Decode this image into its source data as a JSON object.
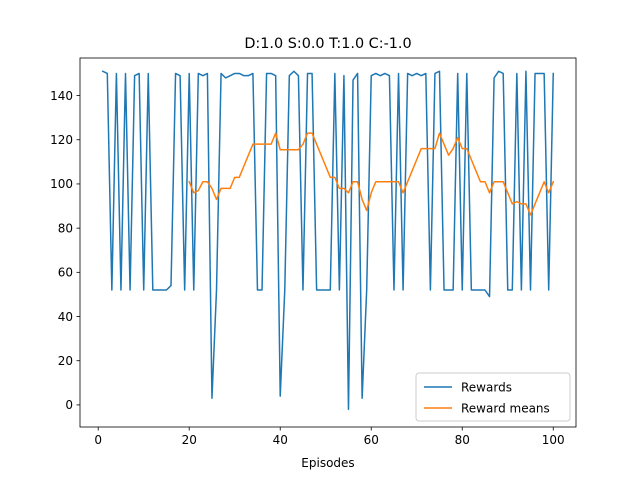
{
  "chart_data": {
    "type": "line",
    "title": "D:1.0 S:0.0 T:1.0 C:-1.0",
    "xlabel": "Episodes",
    "ylabel": "",
    "xlim": [
      -4,
      105
    ],
    "ylim": [
      -10,
      157
    ],
    "xticks": [
      0,
      20,
      40,
      60,
      80,
      100
    ],
    "yticks": [
      0,
      20,
      40,
      60,
      80,
      100,
      120,
      140
    ],
    "legend_position": "lower-right",
    "grid": false,
    "series": [
      {
        "name": "Rewards",
        "color": "#1f77b4",
        "x": [
          1,
          2,
          3,
          4,
          5,
          6,
          7,
          8,
          9,
          10,
          11,
          12,
          13,
          14,
          15,
          16,
          17,
          18,
          19,
          20,
          21,
          22,
          23,
          24,
          25,
          26,
          27,
          28,
          29,
          30,
          31,
          32,
          33,
          34,
          35,
          36,
          37,
          38,
          39,
          40,
          41,
          42,
          43,
          44,
          45,
          46,
          47,
          48,
          49,
          50,
          51,
          52,
          53,
          54,
          55,
          56,
          57,
          58,
          59,
          60,
          61,
          62,
          63,
          64,
          65,
          66,
          67,
          68,
          69,
          70,
          71,
          72,
          73,
          74,
          75,
          76,
          77,
          78,
          79,
          80,
          81,
          82,
          83,
          84,
          85,
          86,
          87,
          88,
          89,
          90,
          91,
          92,
          93,
          94,
          95,
          96,
          97,
          98,
          99,
          100
        ],
        "values": [
          151,
          150,
          52,
          150,
          52,
          150,
          52,
          149,
          150,
          52,
          150,
          52,
          52,
          52,
          52,
          54,
          150,
          149,
          52,
          150,
          52,
          150,
          149,
          150,
          3,
          52,
          150,
          148,
          149,
          150,
          150,
          149,
          149,
          150,
          52,
          52,
          150,
          150,
          149,
          4,
          52,
          149,
          151,
          149,
          52,
          150,
          150,
          52,
          52,
          52,
          52,
          150,
          52,
          149,
          -2,
          147,
          150,
          3,
          52,
          149,
          150,
          149,
          150,
          149,
          52,
          150,
          52,
          150,
          149,
          150,
          149,
          150,
          52,
          150,
          151,
          52,
          52,
          52,
          150,
          52,
          150,
          52,
          52,
          52,
          52,
          49,
          148,
          151,
          150,
          52,
          52,
          150,
          52,
          151,
          52,
          150,
          150,
          150,
          52,
          150
        ]
      },
      {
        "name": "Reward means",
        "color": "#ff7f0e",
        "x": [
          20,
          21,
          22,
          23,
          24,
          25,
          26,
          27,
          28,
          29,
          30,
          31,
          32,
          33,
          34,
          35,
          36,
          37,
          38,
          39,
          40,
          41,
          42,
          43,
          44,
          45,
          46,
          47,
          48,
          49,
          50,
          51,
          52,
          53,
          54,
          55,
          56,
          57,
          58,
          59,
          60,
          61,
          62,
          63,
          64,
          65,
          66,
          67,
          68,
          69,
          70,
          71,
          72,
          73,
          74,
          75,
          76,
          77,
          78,
          79,
          80,
          81,
          82,
          83,
          84,
          85,
          86,
          87,
          88,
          89,
          90,
          91,
          92,
          93,
          94,
          95,
          96,
          97,
          98,
          99,
          100
        ],
        "values": [
          101,
          96,
          97,
          101,
          101,
          98,
          93,
          98,
          98,
          98,
          103,
          103,
          108,
          113,
          118,
          118,
          118,
          118,
          118,
          123,
          115.5,
          115.5,
          115.5,
          115.5,
          115.5,
          118,
          123,
          123,
          118,
          113,
          108,
          103,
          103,
          98,
          98,
          96,
          101,
          101,
          93,
          88,
          96,
          101,
          101,
          101,
          101,
          101,
          101,
          96,
          101,
          106,
          111,
          116,
          116,
          116,
          116,
          123,
          118,
          113,
          116,
          121,
          116,
          116,
          111,
          106,
          101,
          101,
          96,
          101,
          101,
          101,
          96,
          91,
          92,
          91,
          91,
          86,
          91,
          96,
          101,
          96,
          101
        ]
      }
    ]
  }
}
